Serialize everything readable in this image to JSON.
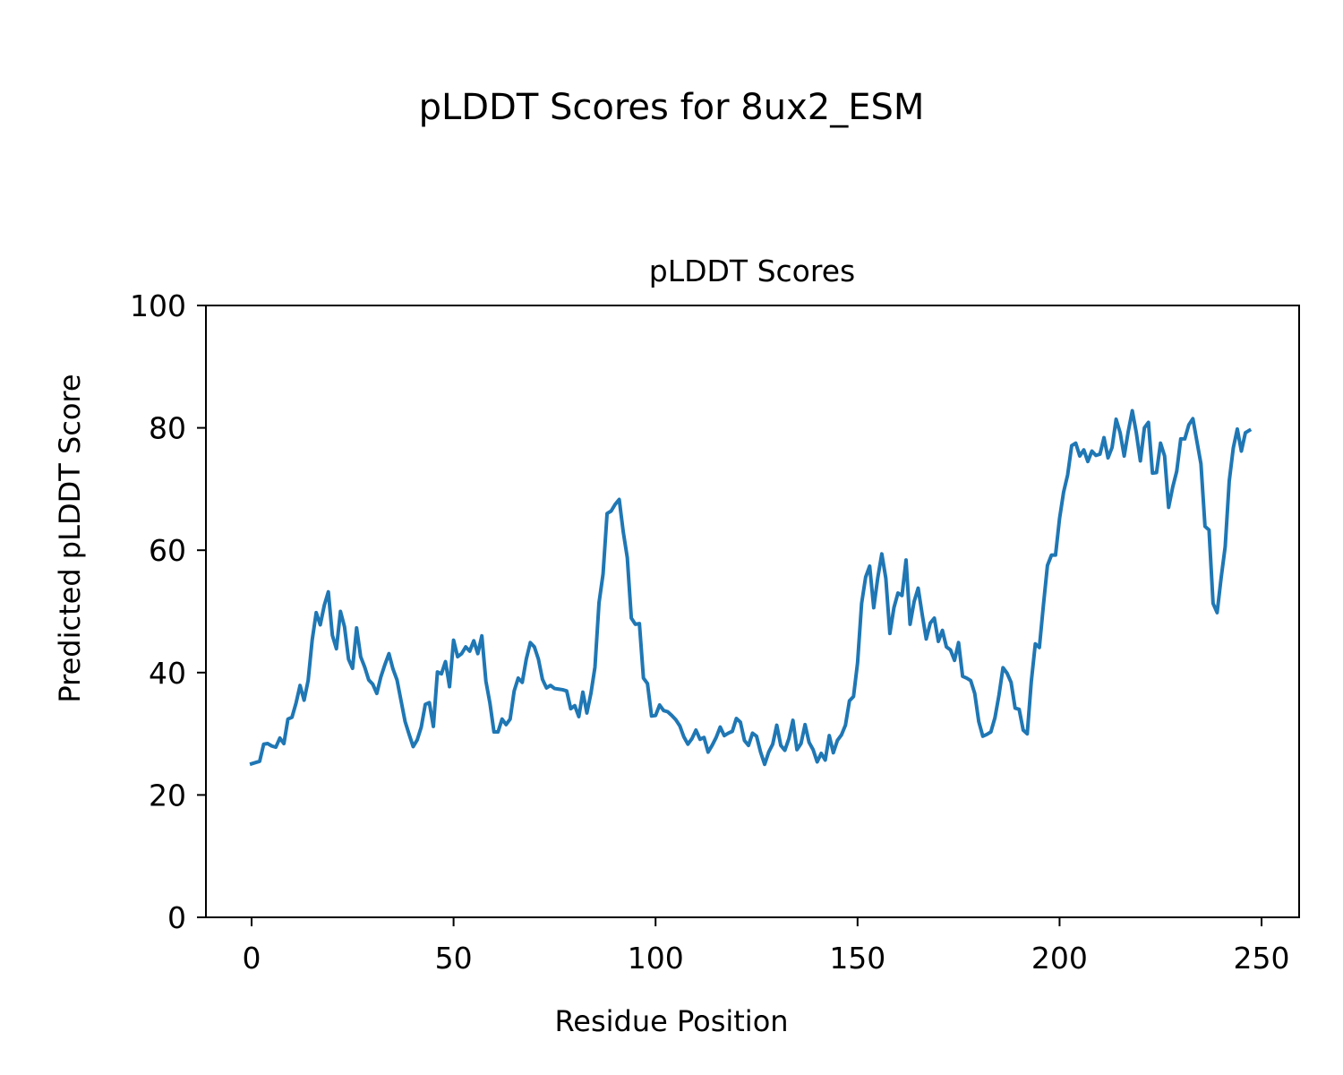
{
  "figure": {
    "suptitle": "pLDDT Scores for 8ux2_ESM"
  },
  "colors": {
    "line": "#1f77b4",
    "axis": "#000000",
    "background": "#ffffff"
  },
  "chart_data": {
    "type": "line",
    "title": "pLDDT Scores",
    "xlabel": "Residue Position",
    "ylabel": "Predicted pLDDT Score",
    "xlim": [
      -11.3,
      259.3
    ],
    "ylim": [
      0,
      100
    ],
    "xticks": [
      0,
      50,
      100,
      150,
      200,
      250
    ],
    "yticks": [
      0,
      20,
      40,
      60,
      80,
      100
    ],
    "grid": false,
    "series": [
      {
        "values": [
          25.1,
          25.3,
          25.5,
          28.3,
          28.4,
          28.0,
          27.8,
          29.3,
          28.4,
          32.4,
          32.7,
          35.0,
          37.9,
          35.5,
          38.7,
          45.3,
          49.8,
          47.8,
          51.0,
          53.2,
          46.1,
          43.9,
          50.0,
          47.5,
          42.2,
          40.7,
          47.3,
          42.6,
          40.9,
          38.8,
          38.1,
          36.6,
          39.3,
          41.3,
          43.1,
          40.6,
          38.8,
          35.4,
          32.0,
          29.9,
          27.9,
          29.0,
          31.1,
          34.8,
          35.1,
          31.2,
          40.1,
          39.8,
          41.8,
          37.7,
          45.3,
          42.6,
          43.1,
          44.2,
          43.5,
          45.2,
          43.1,
          46.0,
          38.6,
          35.0,
          30.3,
          30.3,
          32.4,
          31.5,
          32.4,
          37.0,
          39.1,
          38.4,
          42.2,
          44.9,
          44.2,
          42.2,
          38.9,
          37.5,
          37.9,
          37.4,
          37.3,
          37.2,
          37.0,
          34.1,
          34.6,
          32.8,
          36.8,
          33.4,
          36.6,
          40.9,
          51.4,
          56.1,
          66.0,
          66.4,
          67.5,
          68.3,
          63.0,
          58.8,
          48.9,
          47.9,
          48.0,
          39.1,
          38.2,
          32.9,
          33.0,
          34.7,
          33.8,
          33.6,
          33.0,
          32.3,
          31.3,
          29.5,
          28.3,
          29.2,
          30.6,
          29.1,
          29.4,
          27.0,
          28.1,
          29.4,
          31.1,
          29.7,
          30.1,
          30.4,
          32.5,
          31.9,
          28.9,
          28.1,
          30.1,
          29.6,
          27.0,
          25.0,
          27.0,
          28.3,
          31.4,
          28.1,
          27.3,
          29.2,
          32.2,
          27.4,
          28.4,
          31.5,
          28.6,
          27.4,
          25.4,
          26.8,
          25.7,
          29.7,
          26.9,
          28.9,
          29.8,
          31.4,
          35.4,
          36.1,
          41.6,
          51.3,
          55.6,
          57.4,
          50.6,
          55.5,
          59.4,
          55.4,
          46.4,
          50.6,
          53.0,
          52.6,
          58.4,
          47.9,
          51.6,
          53.8,
          49.5,
          45.5,
          48.1,
          48.9,
          45.1,
          46.9,
          44.2,
          43.7,
          42.0,
          44.9,
          39.4,
          39.1,
          38.7,
          36.6,
          32.0,
          29.6,
          29.9,
          30.3,
          32.6,
          36.3,
          40.8,
          39.9,
          38.4,
          34.2,
          34.0,
          30.6,
          30.0,
          38.5,
          44.7,
          44.1,
          51.0,
          57.5,
          59.2,
          59.2,
          65.2,
          69.5,
          72.3,
          77.1,
          77.5,
          75.4,
          76.4,
          74.5,
          76.2,
          75.5,
          75.7,
          78.4,
          75.1,
          76.8,
          81.4,
          79.2,
          75.4,
          79.4,
          82.8,
          79.2,
          74.6,
          80.0,
          80.9,
          72.6,
          72.7,
          77.5,
          75.4,
          67.0,
          70.3,
          72.9,
          78.2,
          78.2,
          80.5,
          81.5,
          77.8,
          74.1,
          63.9,
          63.3,
          51.3,
          49.8,
          55.5,
          60.6,
          71.3,
          76.7,
          79.8,
          76.2,
          79.2,
          79.6
        ]
      }
    ]
  }
}
